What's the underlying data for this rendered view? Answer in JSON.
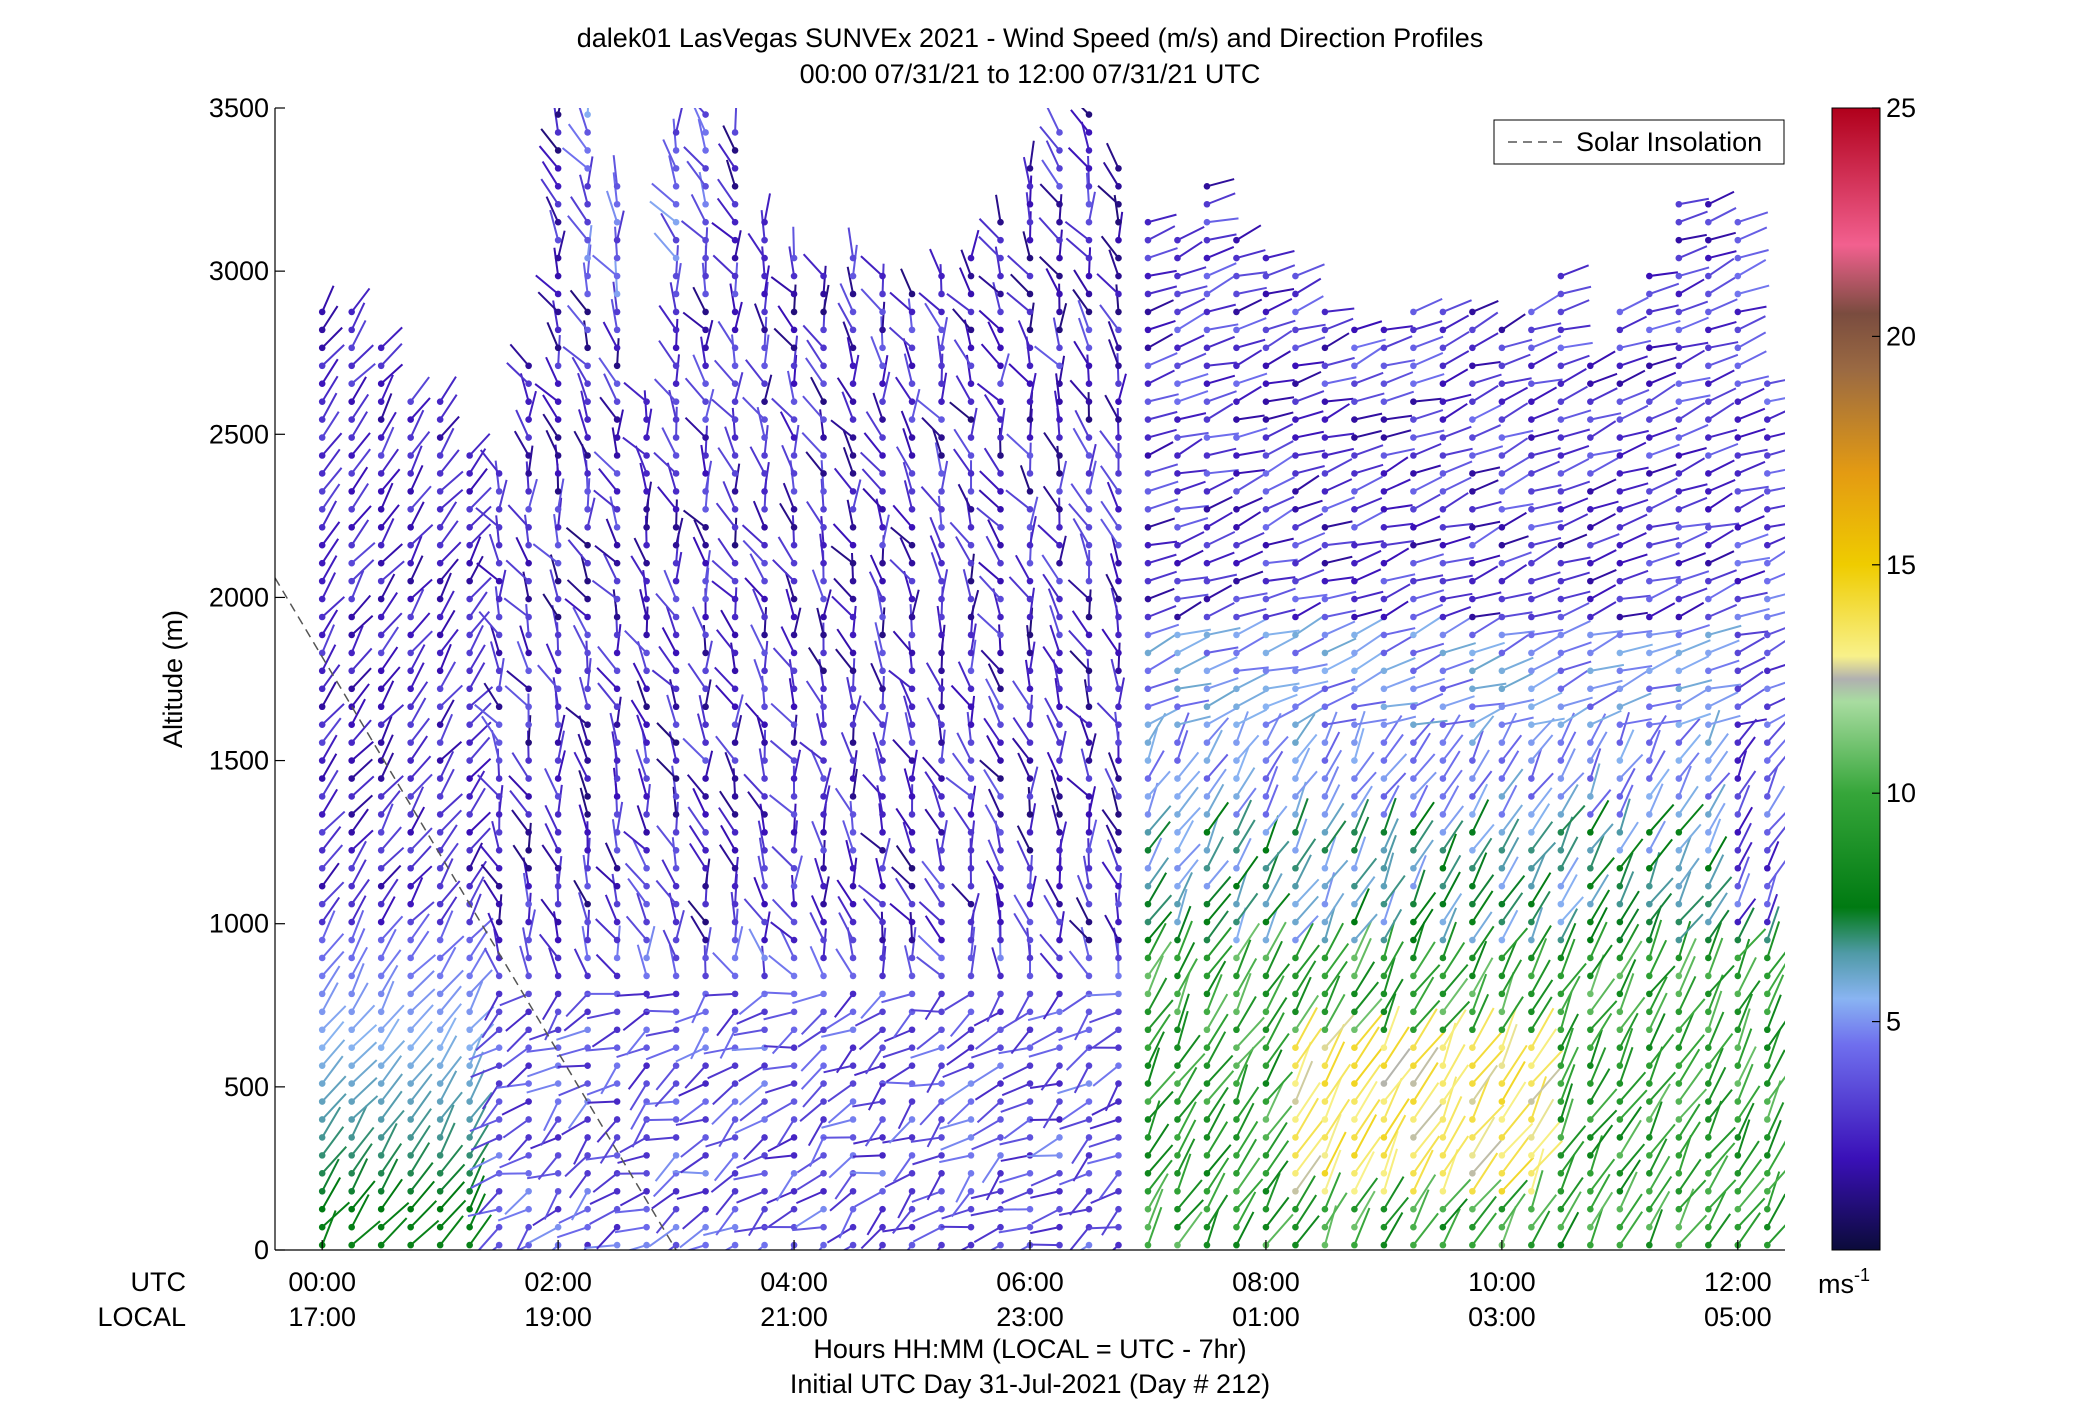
{
  "chart_data": {
    "type": "wind-barb-profile",
    "title": "dalek01 LasVegas SUNVEx 2021 - Wind Speed (m/s) and Direction Profiles",
    "subtitle": "00:00 07/31/21 to 12:00 07/31/21  UTC",
    "xlabel": "Hours HH:MM  (LOCAL = UTC - 7hr)",
    "xlabel2": "Initial UTC Day 31-Jul-2021 (Day # 212)",
    "ylabel": "Altitude (m)",
    "xlim_hours_utc": [
      -0.4,
      12.4
    ],
    "ylim": [
      0,
      3500
    ],
    "y_ticks": [
      0,
      500,
      1000,
      1500,
      2000,
      2500,
      3000,
      3500
    ],
    "x_ticks_hours": [
      0,
      2,
      4,
      6,
      8,
      10,
      12
    ],
    "x_tick_labels_utc": [
      "00:00",
      "02:00",
      "04:00",
      "06:00",
      "08:00",
      "10:00",
      "12:00"
    ],
    "x_tick_labels_local": [
      "17:00",
      "19:00",
      "21:00",
      "23:00",
      "01:00",
      "03:00",
      "05:00"
    ],
    "row_label_utc": "UTC",
    "row_label_local": "LOCAL",
    "legend": {
      "entries": [
        "Solar Insolation"
      ],
      "position": "top-right"
    },
    "colorbar": {
      "range": [
        0,
        25
      ],
      "ticks": [
        5,
        10,
        15,
        20,
        25
      ],
      "unit_label": "ms",
      "unit_superscript": "-1"
    },
    "solar_insolation": {
      "hours": [
        -0.4,
        3.0
      ],
      "altitude": [
        2060,
        0
      ]
    },
    "profiles": [
      {
        "t": 0.0,
        "top": 2880
      },
      {
        "t": 0.25,
        "top": 2880
      },
      {
        "t": 0.5,
        "top": 2780
      },
      {
        "t": 0.75,
        "top": 2650
      },
      {
        "t": 1.0,
        "top": 2600
      },
      {
        "t": 1.25,
        "top": 2450
      },
      {
        "t": 1.5,
        "top": 2400
      },
      {
        "t": 1.75,
        "top": 2720
      },
      {
        "t": 2.0,
        "top": 3480
      },
      {
        "t": 2.25,
        "top": 3480
      },
      {
        "t": 2.5,
        "top": 3280
      },
      {
        "t": 2.75,
        "top": 2650
      },
      {
        "t": 3.0,
        "top": 3460
      },
      {
        "t": 3.25,
        "top": 3480
      },
      {
        "t": 3.5,
        "top": 3470
      },
      {
        "t": 3.75,
        "top": 3200
      },
      {
        "t": 4.0,
        "top": 3050
      },
      {
        "t": 4.25,
        "top": 3000
      },
      {
        "t": 4.5,
        "top": 3050
      },
      {
        "t": 4.75,
        "top": 3000
      },
      {
        "t": 5.0,
        "top": 2980
      },
      {
        "t": 5.25,
        "top": 3000
      },
      {
        "t": 5.5,
        "top": 3050
      },
      {
        "t": 5.75,
        "top": 3200
      },
      {
        "t": 6.0,
        "top": 3320
      },
      {
        "t": 6.25,
        "top": 3470
      },
      {
        "t": 6.5,
        "top": 3480
      },
      {
        "t": 6.75,
        "top": 3350
      },
      {
        "t": 7.0,
        "top": 3180
      },
      {
        "t": 7.25,
        "top": 3120
      },
      {
        "t": 7.5,
        "top": 3270
      },
      {
        "t": 7.75,
        "top": 3140
      },
      {
        "t": 8.0,
        "top": 3050
      },
      {
        "t": 8.25,
        "top": 3000
      },
      {
        "t": 8.5,
        "top": 2880
      },
      {
        "t": 8.75,
        "top": 2850
      },
      {
        "t": 9.0,
        "top": 2850
      },
      {
        "t": 9.25,
        "top": 2880
      },
      {
        "t": 9.5,
        "top": 2880
      },
      {
        "t": 9.75,
        "top": 2880
      },
      {
        "t": 10.0,
        "top": 2850
      },
      {
        "t": 10.25,
        "top": 2880
      },
      {
        "t": 10.5,
        "top": 3000
      },
      {
        "t": 10.75,
        "top": 2720
      },
      {
        "t": 11.0,
        "top": 2880
      },
      {
        "t": 11.25,
        "top": 3000
      },
      {
        "t": 11.5,
        "top": 3220
      },
      {
        "t": 11.75,
        "top": 3220
      },
      {
        "t": 12.0,
        "top": 3200
      },
      {
        "t": 12.25,
        "top": 2700
      }
    ],
    "profile_level_spacing_m": 55,
    "speed_notes": [
      {
        "period_utc": "00:00-01:30",
        "altitude_range": [
          0,
          1000
        ],
        "speed_range_ms": [
          6,
          10
        ]
      },
      {
        "period_utc": "01:00-07:00",
        "altitude_range": [
          0,
          3500
        ],
        "speed_range_ms": [
          0,
          5
        ]
      },
      {
        "period_utc": "07:00-12:00",
        "altitude_range": [
          0,
          1500
        ],
        "speed_range_ms": [
          6,
          12
        ]
      },
      {
        "period_utc": "08:00-10:00",
        "altitude_range": [
          150,
          600
        ],
        "speed_range_ms": [
          12,
          15
        ]
      },
      {
        "period_utc": "07:00-12:00",
        "altitude_range": [
          1500,
          3300
        ],
        "speed_range_ms": [
          0,
          5
        ]
      }
    ]
  }
}
